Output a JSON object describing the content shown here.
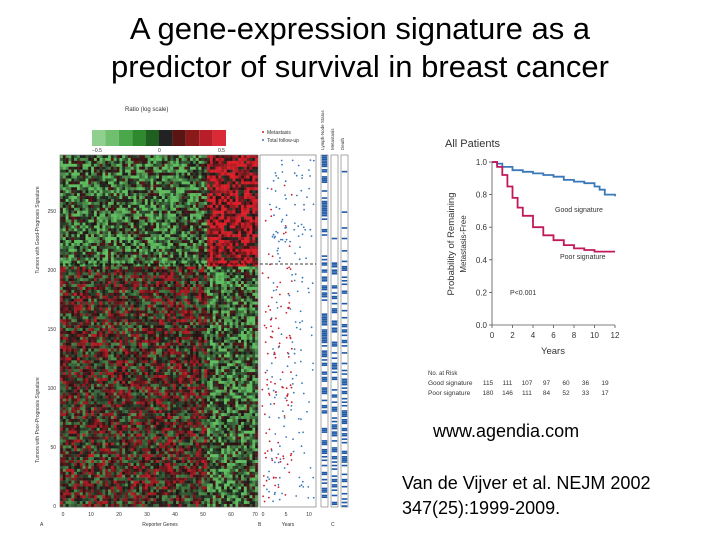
{
  "slide": {
    "title_line1": "A gene-expression signature as a",
    "title_line2": "predictor of survival in breast cancer",
    "url": "www.agendia.com",
    "citation_line1": "Van de Vijver et al. NEJM 2002",
    "citation_line2": "347(25):1999-2009."
  },
  "heatmap": {
    "colorbar_label": "Ratio (log scale)",
    "colorbar_ticks": [
      "−0.5",
      "0",
      "0.5"
    ],
    "y_label_top": "Tumors with Good-Prognosis Signature",
    "y_label_bottom": "Tumors with Poor-Prognosis Signature",
    "y_ticks": [
      "250",
      "200",
      "150",
      "100",
      "50",
      "0"
    ],
    "x_ticks": [
      "0",
      "10",
      "20",
      "30",
      "40",
      "50",
      "60",
      "70"
    ],
    "x_label": "Reporter Genes",
    "panel_a": "A",
    "colors": {
      "green": "#3a9a3a",
      "red": "#c81e2e",
      "black": "#151515"
    }
  },
  "scatter_panel": {
    "legend_metastasis": "Metastasis",
    "legend_followup": "Total follow-up",
    "x_ticks": [
      "0",
      "5",
      "10"
    ],
    "x_label": "Years",
    "panel_b": "B",
    "panel_c": "C",
    "col_headers": [
      "Lymph-Node Status",
      "Metastasis",
      "Death"
    ]
  },
  "km": {
    "title": "All Patients",
    "ylabel_line1": "Probability of Remaining",
    "ylabel_line2": "Metastasis-Free",
    "xlabel": "Years",
    "y_ticks": [
      "0.0",
      "0.2",
      "0.4",
      "0.6",
      "0.8",
      "1.0"
    ],
    "x_ticks": [
      "0",
      "2",
      "4",
      "6",
      "8",
      "10",
      "12"
    ],
    "good_label": "Good signature",
    "poor_label": "Poor signature",
    "pvalue": "P<0.001",
    "risk_title": "No. at Risk",
    "risk_rows": [
      {
        "label": "Good signature",
        "values": [
          "115",
          "111",
          "107",
          "97",
          "60",
          "36",
          "19"
        ]
      },
      {
        "label": "Poor signature",
        "values": [
          "180",
          "146",
          "111",
          "84",
          "52",
          "33",
          "17"
        ]
      }
    ],
    "colors": {
      "good": "#3b78b8",
      "poor": "#c2185b"
    }
  },
  "chart_data": {
    "type": "line",
    "title": "All Patients",
    "xlabel": "Years",
    "ylabel": "Probability of Remaining Metastasis-Free",
    "xlim": [
      0,
      12
    ],
    "ylim": [
      0,
      1.0
    ],
    "series": [
      {
        "name": "Good signature",
        "x": [
          0,
          0.5,
          1,
          2,
          3,
          4,
          5,
          6,
          7,
          8,
          9,
          10,
          10.5,
          11,
          12
        ],
        "y": [
          1.0,
          0.99,
          0.97,
          0.95,
          0.94,
          0.93,
          0.92,
          0.91,
          0.89,
          0.88,
          0.87,
          0.85,
          0.83,
          0.8,
          0.79
        ]
      },
      {
        "name": "Poor signature",
        "x": [
          0,
          0.5,
          1,
          1.5,
          2,
          2.5,
          3,
          4,
          5,
          6,
          7,
          8,
          9,
          10,
          11,
          12
        ],
        "y": [
          1.0,
          0.97,
          0.92,
          0.85,
          0.78,
          0.72,
          0.67,
          0.6,
          0.55,
          0.52,
          0.49,
          0.47,
          0.46,
          0.45,
          0.45,
          0.45
        ]
      }
    ]
  }
}
